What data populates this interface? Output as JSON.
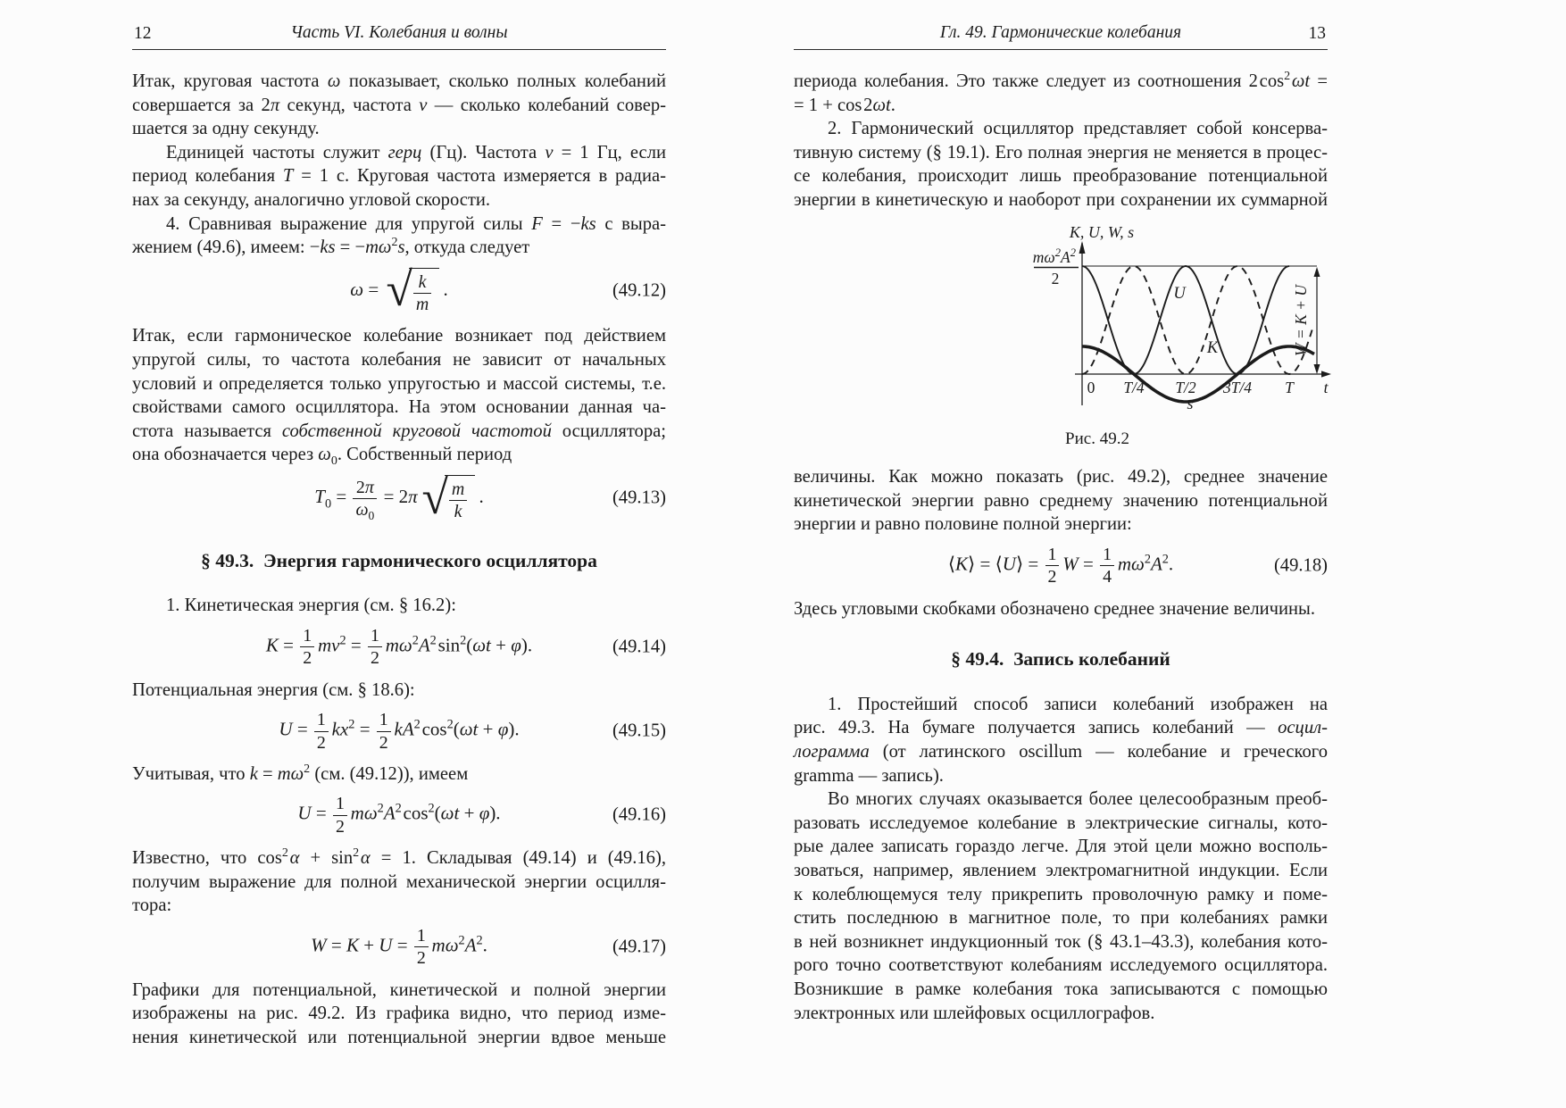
{
  "pages": [
    {
      "number": "12",
      "running_title": "Часть VI.  Колебания и волны",
      "blocks": [
        {
          "type": "p",
          "indent": false,
          "lines": [
            [
              "j",
              "Итак, круговая частота <i>ω</i> показывает, сколько полных колебаний"
            ],
            [
              "j",
              "совершается за 2<i>π</i> секунд, частота <i>ν</i> — сколько колебаний совер-"
            ],
            [
              "l",
              "шается за одну секунду."
            ]
          ]
        },
        {
          "type": "p",
          "indent": true,
          "lines": [
            [
              "j",
              "Единицей частоты служит <i>герц</i> (Гц). Частота <i>ν</i> = 1 Гц, если"
            ],
            [
              "j",
              "период колебания <i>T</i> = 1 с. Круговая частота измеряется в радиа-"
            ],
            [
              "l",
              "нах за секунду, аналогично угловой скорости."
            ]
          ]
        },
        {
          "type": "p",
          "indent": true,
          "lines": [
            [
              "j",
              "4. Сравнивая выражение для упругой силы <i>F</i> = −<i>ks</i> с выра-"
            ],
            [
              "l",
              "жением (49.6), имеем: −<i>ks</i> = −<i>mω</i><sup>2</sup><i>s</i>, откуда следует"
            ]
          ]
        },
        {
          "type": "eq",
          "num": "(49.12)",
          "html": "<i>ω</i> = <span class='sqrt'><span class='rad'>√</span><span class='rb'><span class='frac'><span class='fn'><i>k</i></span><span class='fd'><i>m</i></span></span></span></span>&thinsp;."
        },
        {
          "type": "p",
          "indent": false,
          "lines": [
            [
              "j",
              "Итак, если гармоническое колебание возникает под действием"
            ],
            [
              "j",
              "упругой силы, то частота колебания не зависит от начальных"
            ],
            [
              "j",
              "условий и определяется только упругостью и массой системы, т.е."
            ],
            [
              "j",
              "свойствами самого осциллятора. На этом основании данная ча-"
            ],
            [
              "j",
              "стота называется <i>собственной круговой частотой</i> осциллятора;"
            ],
            [
              "l",
              "она обозначается через <i>ω</i><sub>0</sub>. Собственный период"
            ]
          ]
        },
        {
          "type": "eq",
          "num": "(49.13)",
          "html": "<i>T</i><sub>0</sub> = <span class='frac'><span class='fn'>2<i>π</i></span><span class='fd'><i>ω</i><sub>0</sub></span></span> = 2<i>π</i>&hairsp;<span class='sqrt'><span class='rad'>√</span><span class='rb'><span class='frac'><span class='fn'><i>m</i></span><span class='fd'><i>k</i></span></span></span></span>&thinsp;."
        },
        {
          "type": "h",
          "text": "§ 49.3. Энергия гармонического осциллятора"
        },
        {
          "type": "p",
          "indent": true,
          "lines": [
            [
              "l",
              "1. Кинетическая энергия (см. § 16.2):"
            ]
          ]
        },
        {
          "type": "eq",
          "num": "(49.14)",
          "html": "<i>K</i> = <span class='frac'><span class='fn'>1</span><span class='fd'>2</span></span>&hairsp;<i>mv</i><sup>2</sup> = <span class='frac'><span class='fn'>1</span><span class='fd'>2</span></span>&hairsp;<i>mω</i><sup>2</sup><i>A</i><sup>2</sup>&hairsp;sin<sup>2</sup>(<i>ωt</i> + <i>φ</i>)."
        },
        {
          "type": "p",
          "indent": false,
          "lines": [
            [
              "l",
              "Потенциальная энергия (см. § 18.6):"
            ]
          ]
        },
        {
          "type": "eq",
          "num": "(49.15)",
          "html": "<i>U</i> = <span class='frac'><span class='fn'>1</span><span class='fd'>2</span></span>&hairsp;<i>kx</i><sup>2</sup> = <span class='frac'><span class='fn'>1</span><span class='fd'>2</span></span>&hairsp;<i>kA</i><sup>2</sup>&hairsp;cos<sup>2</sup>(<i>ωt</i> + <i>φ</i>)."
        },
        {
          "type": "p",
          "indent": false,
          "lines": [
            [
              "l",
              "Учитывая, что <i>k</i> = <i>mω</i><sup>2</sup> (см. (49.12)), имеем"
            ]
          ]
        },
        {
          "type": "eq",
          "num": "(49.16)",
          "html": "<i>U</i> = <span class='frac'><span class='fn'>1</span><span class='fd'>2</span></span>&hairsp;<i>mω</i><sup>2</sup><i>A</i><sup>2</sup>&hairsp;cos<sup>2</sup>(<i>ωt</i> + <i>φ</i>)."
        },
        {
          "type": "p",
          "indent": false,
          "lines": [
            [
              "j",
              "Известно, что cos<sup>2</sup>&hairsp;<i>α</i> + sin<sup>2</sup>&hairsp;<i>α</i> = 1. Складывая (49.14) и (49.16),"
            ],
            [
              "j",
              "получим выражение для полной механической энергии осцилля-"
            ],
            [
              "l",
              "тора:"
            ]
          ]
        },
        {
          "type": "eq",
          "num": "(49.17)",
          "html": "<i>W</i> = <i>K</i> + <i>U</i> = <span class='frac'><span class='fn'>1</span><span class='fd'>2</span></span>&hairsp;<i>mω</i><sup>2</sup><i>A</i><sup>2</sup>."
        },
        {
          "type": "p",
          "indent": false,
          "lines": [
            [
              "j",
              "Графики для потенциальной, кинетической и полной энергии"
            ],
            [
              "j",
              "изображены на рис. 49.2. Из графика видно, что период изме-"
            ],
            [
              "j",
              "нения кинетической или потенциальной энергии вдвое меньше"
            ]
          ]
        }
      ]
    },
    {
      "number": "13",
      "running_title": "Гл. 49.  Гармонические колебания",
      "blocks": [
        {
          "type": "p",
          "indent": false,
          "lines": [
            [
              "j",
              "периода колебания. Это также следует из соотношения 2&hairsp;cos<sup>2</sup>&hairsp;<i>ωt</i> ="
            ],
            [
              "l",
              "= 1 + cos&hairsp;2<i>ωt</i>."
            ]
          ]
        },
        {
          "type": "p",
          "indent": true,
          "lines": [
            [
              "j",
              "2. Гармонический осциллятор представляет собой консерва-"
            ],
            [
              "j",
              "тивную систему (§ 19.1). Его полная энергия не меняется в процес-"
            ],
            [
              "j",
              "се колебания, происходит лишь преобразование потенциальной"
            ],
            [
              "j",
              "энергии в кинетическую и наоборот при сохранении их суммарной"
            ]
          ]
        },
        {
          "type": "figure"
        },
        {
          "type": "p",
          "indent": false,
          "lines": [
            [
              "j",
              "величины. Как можно показать (рис. 49.2), среднее значение"
            ],
            [
              "j",
              "кинетической энергии равно среднему значению потенциальной"
            ],
            [
              "l",
              "энергии и равно половине полной энергии:"
            ]
          ]
        },
        {
          "type": "eq",
          "num": "(49.18)",
          "html": "⟨<i>K</i>⟩ = ⟨<i>U</i>⟩ = <span class='frac'><span class='fn'>1</span><span class='fd'>2</span></span>&hairsp;<i>W</i> = <span class='frac'><span class='fn'>1</span><span class='fd'>4</span></span>&hairsp;<i>mω</i><sup>2</sup><i>A</i><sup>2</sup>."
        },
        {
          "type": "p",
          "indent": false,
          "lines": [
            [
              "l",
              "Здесь угловыми скобками обозначено среднее значение величины."
            ]
          ]
        },
        {
          "type": "h",
          "text": "§ 49.4. Запись колебаний"
        },
        {
          "type": "p",
          "indent": true,
          "lines": [
            [
              "j",
              "1. Простейший способ записи колебаний изображен на"
            ],
            [
              "j",
              "рис. 49.3. На бумаге получается запись колебаний — <i>осцил-</i>"
            ],
            [
              "j",
              "<i>лограмма</i> (от латинского oscillum — колебание и греческого"
            ],
            [
              "l",
              "gramma — запись)."
            ]
          ]
        },
        {
          "type": "p",
          "indent": true,
          "lines": [
            [
              "j",
              "Во многих случаях оказывается более целесообразным преоб-"
            ],
            [
              "j",
              "разовать исследуемое колебание в электрические сигналы, кото-"
            ],
            [
              "j",
              "рые далее записать гораздо легче. Для этой цели можно восполь-"
            ],
            [
              "j",
              "зоваться, например, явлением электромагнитной индукции. Если"
            ],
            [
              "j",
              "к колеблющемуся телу прикрепить проволочную рамку и поме-"
            ],
            [
              "j",
              "стить последнюю в магнитное поле, то при колебаниях рамки"
            ],
            [
              "j",
              "в ней возникнет индукционный ток (§ 43.1–43.3), колебания кото-"
            ],
            [
              "j",
              "рого точно соответствуют колебаниям исследуемого осциллятора."
            ],
            [
              "j",
              "Возникшие в рамке колебания тока записываются с помощью"
            ],
            [
              "l",
              "электронных или шлейфовых осциллографов."
            ]
          ]
        }
      ]
    }
  ],
  "figure": {
    "caption": "Рис. 49.2",
    "axis_label_top": "K, U, W, s",
    "ymax_num_parts": [
      [
        "mω",
        false
      ],
      [
        "2",
        true
      ],
      [
        "A",
        false
      ],
      [
        "2",
        true
      ]
    ],
    "ymax_denominator": "2",
    "ticks": [
      "0",
      "T/4",
      "T/2",
      "3T/4",
      "T"
    ],
    "t_label": "t",
    "label_U": "U",
    "label_K": "K",
    "label_s": "s",
    "label_W": "W = K + U"
  },
  "chart_data": {
    "type": "line",
    "title": "Рис. 49.2",
    "xlabel": "t",
    "ylabel": "K, U, W, s",
    "x_ticks": [
      "0",
      "T/4",
      "T/2",
      "3T/4",
      "T"
    ],
    "y_max_tick": "mω²A²/2",
    "x_range_periods": [
      0,
      1.12
    ],
    "grid": false,
    "series": [
      {
        "name": "U",
        "style": "solid-thin",
        "description": "potential energy, U = (mω²A²/2)·cos²(ωt)",
        "relative_amplitude": 1.0,
        "period": "T/2",
        "maxima_at": [
          "0",
          "T/2",
          "T"
        ],
        "zeros_at": [
          "T/4",
          "3T/4"
        ]
      },
      {
        "name": "K",
        "style": "dashed",
        "description": "kinetic energy, K = (mω²A²/2)·sin²(ωt)",
        "relative_amplitude": 1.0,
        "period": "T/2",
        "maxima_at": [
          "T/4",
          "3T/4"
        ],
        "zeros_at": [
          "0",
          "T/2",
          "T"
        ]
      },
      {
        "name": "s",
        "style": "solid-thick",
        "description": "displacement, s = A·cos(ωt)",
        "relative_amplitude": 0.25,
        "period": "T",
        "maxima_at": [
          "0",
          "T"
        ],
        "minima_at": [
          "T/2"
        ]
      }
    ],
    "annotations": [
      {
        "text": "W = K + U",
        "position": "right edge, vertical double arrow from axis to level mω²A²/2"
      }
    ]
  }
}
